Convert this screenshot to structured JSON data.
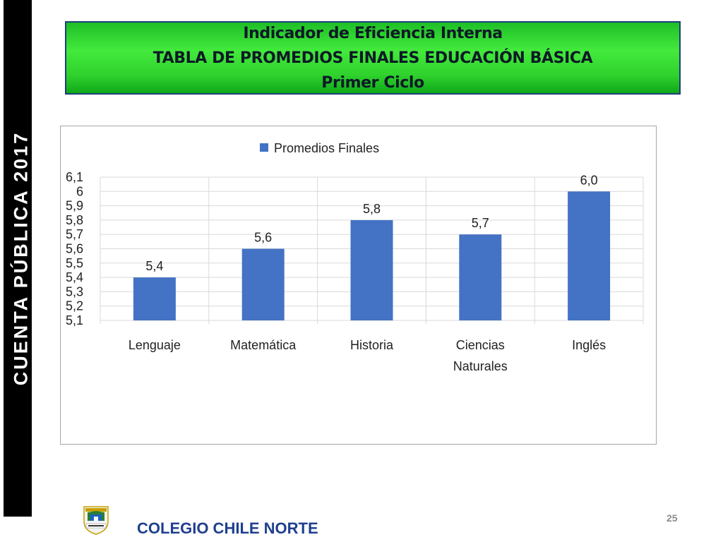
{
  "side_banner": "CUENTA  PÚBLICA  2017",
  "header": {
    "line1": "Indicador de Eficiencia Interna",
    "line2": "TABLA DE PROMEDIOS FINALES EDUCACIÓN BÁSICA",
    "line3": "Primer Ciclo"
  },
  "chart_data": {
    "type": "bar",
    "categories": [
      [
        "Lenguaje"
      ],
      [
        "Matemática"
      ],
      [
        "Historia"
      ],
      [
        "Ciencias",
        "Naturales"
      ],
      [
        "Inglés"
      ]
    ],
    "series": [
      {
        "name": "Promedios Finales",
        "values": [
          5.4,
          5.6,
          5.8,
          5.7,
          6.0
        ],
        "data_labels": [
          "5,4",
          "5,6",
          "5,8",
          "5,7",
          "6,0"
        ],
        "color": "#4472c4"
      }
    ],
    "ylim": [
      5.1,
      6.1
    ],
    "yticks": [
      {
        "value": 5.1,
        "label": "5,1"
      },
      {
        "value": 5.2,
        "label": "5,2"
      },
      {
        "value": 5.3,
        "label": "5,3"
      },
      {
        "value": 5.4,
        "label": "5,4"
      },
      {
        "value": 5.5,
        "label": "5,5"
      },
      {
        "value": 5.6,
        "label": "5,6"
      },
      {
        "value": 5.7,
        "label": "5,7"
      },
      {
        "value": 5.8,
        "label": "5,8"
      },
      {
        "value": 5.9,
        "label": "5,9"
      },
      {
        "value": 6.0,
        "label": "6"
      },
      {
        "value": 6.1,
        "label": "6,1"
      }
    ],
    "legend_position": "top",
    "grid": "horizontal",
    "colors": {
      "bar": "#4472c4",
      "grid": "#d9d9d9",
      "text": "#222222"
    }
  },
  "footer": {
    "logo_icon": "school-crest-icon",
    "school_name": "COLEGIO CHILE NORTE",
    "page_number": "25"
  }
}
